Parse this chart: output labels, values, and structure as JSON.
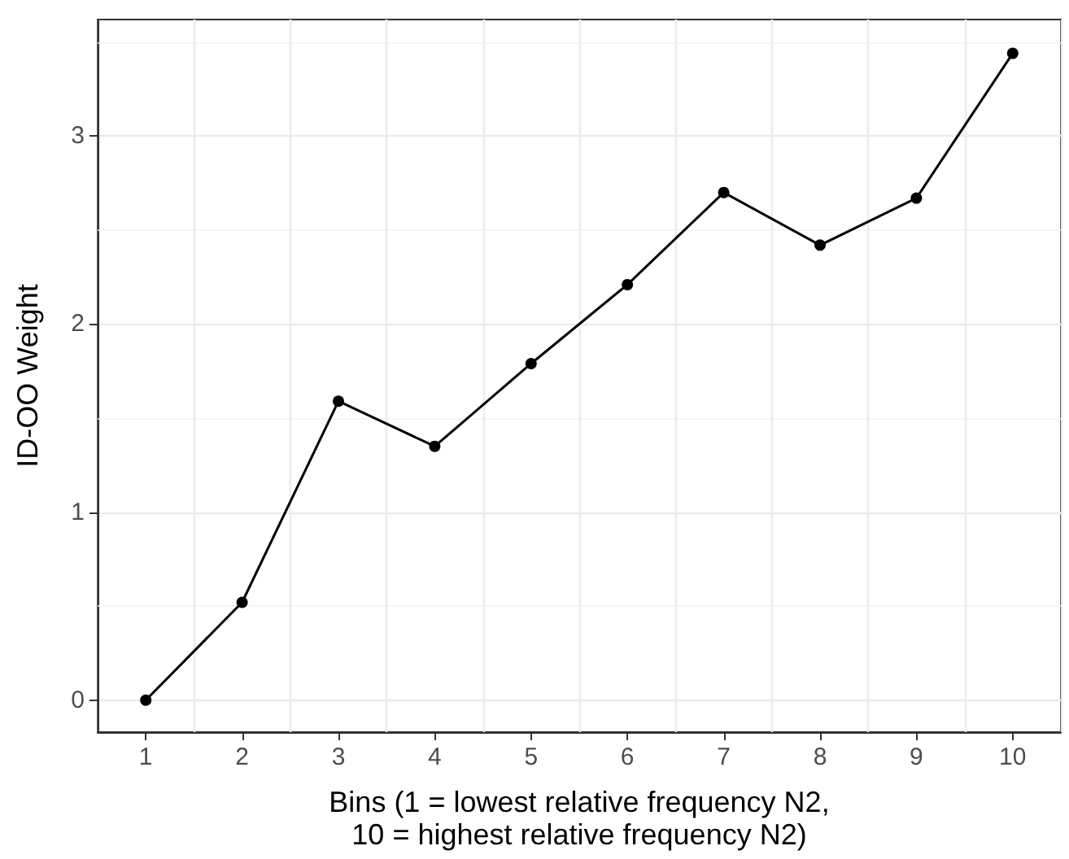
{
  "chart_data": {
    "type": "line",
    "xlabel": "Bins (1 = lowest relative frequency N2,\n10 = highest relative frequency N2)",
    "ylabel": "ID-OO Weight",
    "categories": [
      "1",
      "2",
      "3",
      "4",
      "5",
      "6",
      "7",
      "8",
      "9",
      "10"
    ],
    "series": [
      {
        "color": "#000000",
        "values": [
          0,
          0.52,
          1.59,
          1.35,
          1.79,
          2.21,
          2.7,
          2.42,
          2.67,
          3.44
        ]
      }
    ],
    "ylim": [
      -0.17,
      3.62
    ],
    "yticks": [
      0,
      1,
      2,
      3
    ],
    "grid": true,
    "marker": "circle",
    "line_style": "solid"
  }
}
